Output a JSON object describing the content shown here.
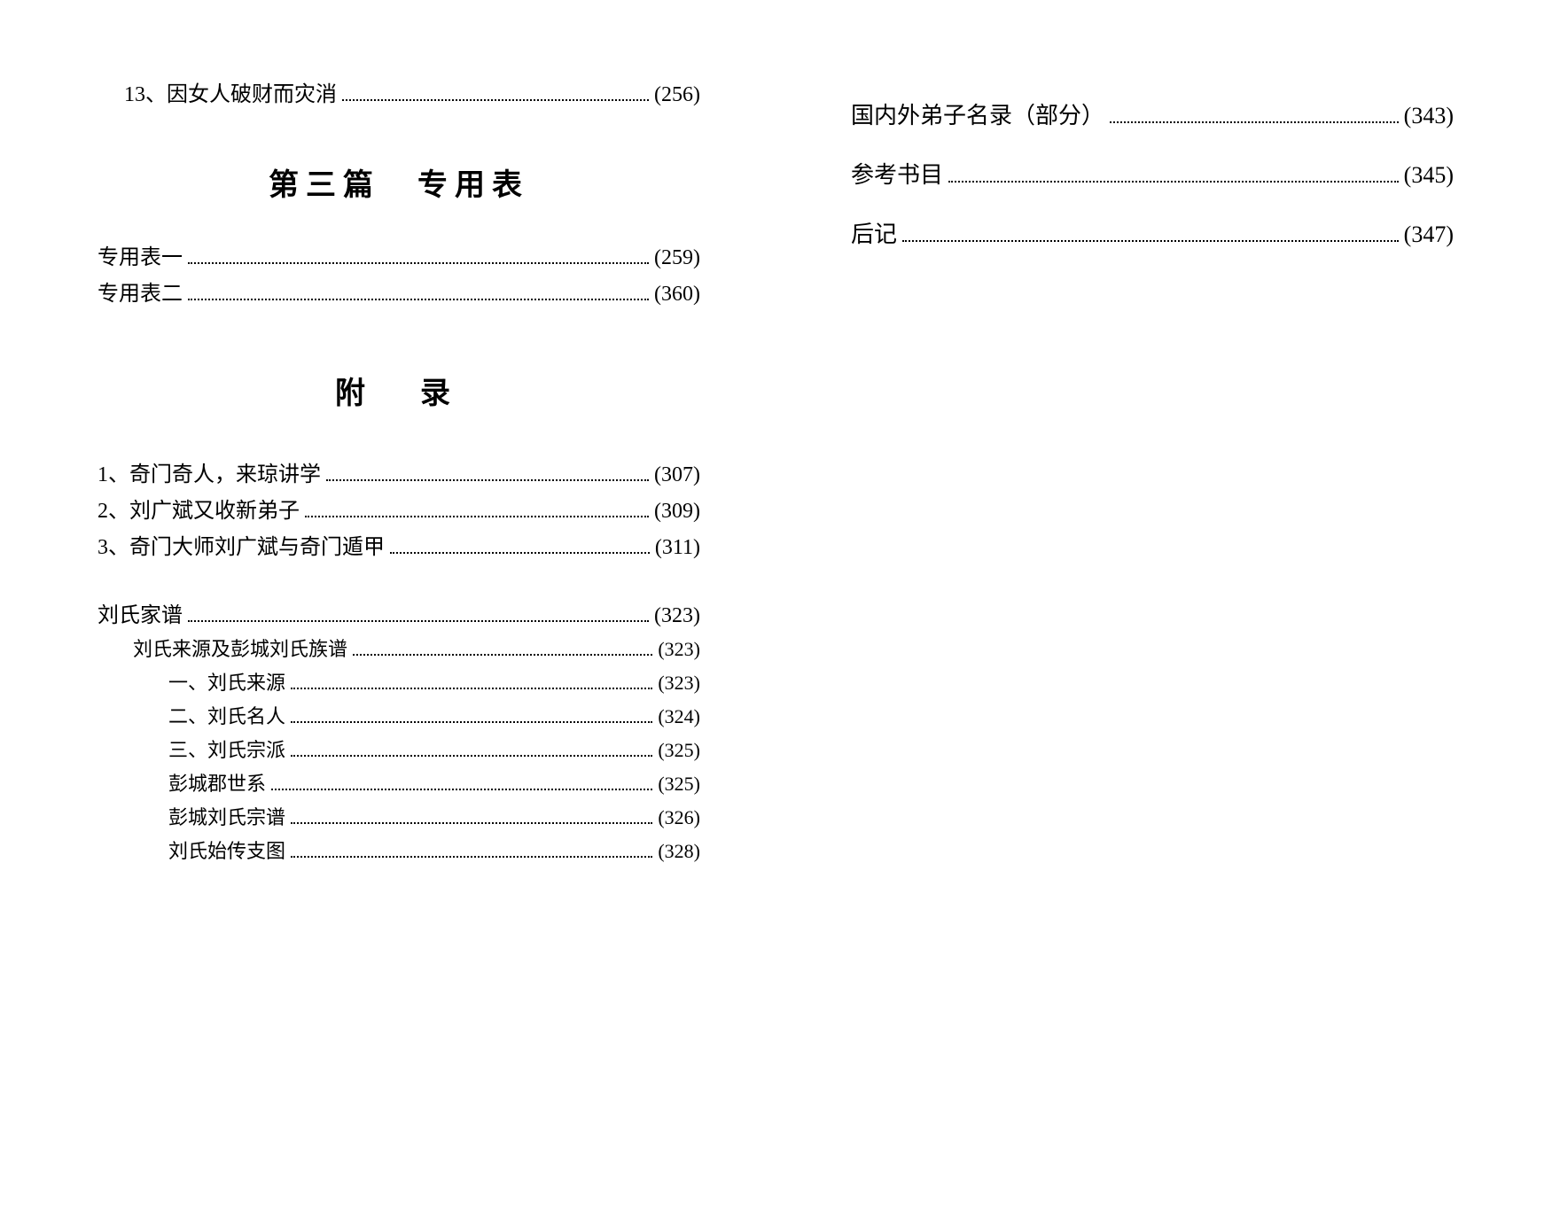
{
  "left": {
    "top_item": {
      "label": "13、因女人破财而灾消",
      "page": "(256)"
    },
    "section3_heading": "第三篇　专用表",
    "section3_items": [
      {
        "label": "专用表一",
        "page": "(259)"
      },
      {
        "label": "专用表二",
        "page": "(360)"
      }
    ],
    "appendix_heading": "附　录",
    "appendix_items": [
      {
        "label": "1、奇门奇人，来琼讲学",
        "page": "(307)"
      },
      {
        "label": "2、刘广斌又收新弟子",
        "page": "(309)"
      },
      {
        "label": "3、奇门大师刘广斌与奇门遁甲",
        "page": "(311)"
      }
    ],
    "family_heading": {
      "label": "刘氏家谱",
      "page": "(323)"
    },
    "family_sub1": {
      "label": "刘氏来源及彭城刘氏族谱",
      "page": "(323)"
    },
    "family_items": [
      {
        "label": "一、刘氏来源",
        "page": "(323)"
      },
      {
        "label": "二、刘氏名人",
        "page": "(324)"
      },
      {
        "label": "三、刘氏宗派",
        "page": "(325)"
      },
      {
        "label": "彭城郡世系",
        "page": "(325)"
      },
      {
        "label": "彭城刘氏宗谱",
        "page": "(326)"
      },
      {
        "label": "刘氏始传支图",
        "page": "(328)"
      }
    ]
  },
  "right": {
    "items": [
      {
        "label": "国内外弟子名录（部分）",
        "page": "(343)"
      },
      {
        "label": "参考书目",
        "page": "(345)"
      },
      {
        "label": "后记",
        "page": "(347)"
      }
    ]
  }
}
